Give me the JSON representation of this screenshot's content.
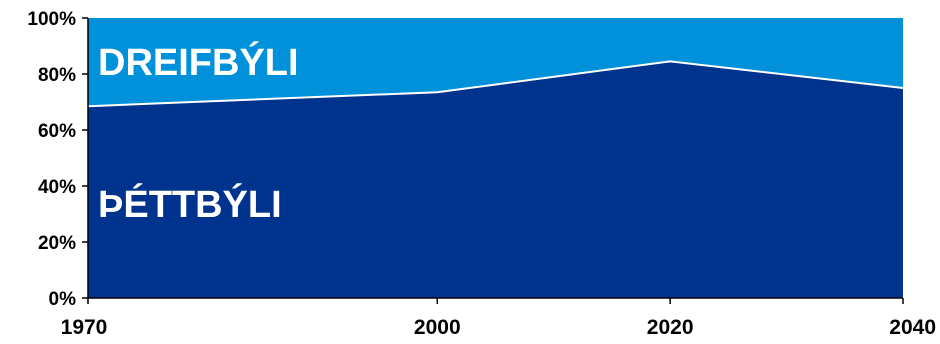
{
  "chart_data": {
    "type": "area",
    "stacked": true,
    "percent": true,
    "x": [
      1970,
      2000,
      2020,
      2040
    ],
    "x_tick_labels": [
      "1970",
      "2000",
      "2020",
      "2040"
    ],
    "y_tick_labels": [
      "0%",
      "20%",
      "40%",
      "60%",
      "80%",
      "100%"
    ],
    "ylim": [
      0,
      100
    ],
    "series": [
      {
        "name": "ÞÉTTBÝLI",
        "values": [
          68.5,
          73.5,
          84.5,
          75
        ],
        "color": "#00338d"
      },
      {
        "name": "DREIFBÝLI",
        "values": [
          31.5,
          26.5,
          15.5,
          25
        ],
        "color": "#0091da"
      }
    ],
    "grid": false,
    "legend": "inline labels"
  }
}
